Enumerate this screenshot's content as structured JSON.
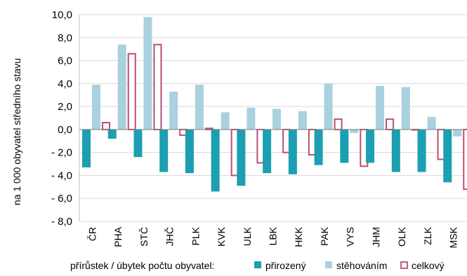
{
  "chart_data": {
    "type": "bar",
    "ylabel": "na 1 000 obyvatel středního stavu",
    "ylim": [
      -8,
      10
    ],
    "yticks": [
      10,
      8,
      6,
      4,
      2,
      0,
      -2,
      -4,
      -6,
      -8
    ],
    "ytick_labels": [
      "10,0",
      "8,0",
      "6,0",
      "4,0",
      "2,0",
      "0,0",
      "- 2,0",
      "- 4,0",
      "- 6,0",
      "- 8,0"
    ],
    "grid": true,
    "legend_position": "bottom",
    "legend_title": "přírůstek / úbytek  počtu  obyvatel:",
    "categories": [
      "ČR",
      "PHA",
      "STČ",
      "JHČ",
      "PLK",
      "KVK",
      "ULK",
      "LBK",
      "HKK",
      "PAK",
      "VYS",
      "JHM",
      "OLK",
      "ZLK",
      "MSK"
    ],
    "series": [
      {
        "name": "přirozený",
        "color": "#1b9fb1",
        "style": "solid",
        "values": [
          -3.3,
          -0.8,
          -2.4,
          -3.7,
          -3.8,
          -5.4,
          -4.9,
          -3.8,
          -3.9,
          -3.1,
          -2.9,
          -2.9,
          -3.7,
          -3.7,
          -4.6
        ]
      },
      {
        "name": "stěhováním",
        "color": "#a9d1df",
        "style": "solid",
        "values": [
          3.9,
          7.4,
          9.8,
          3.3,
          3.9,
          1.5,
          1.9,
          1.8,
          1.6,
          4.0,
          -0.3,
          3.8,
          3.7,
          1.1,
          -0.6
        ]
      },
      {
        "name": "celkový",
        "color": "#b94e77",
        "style": "outline",
        "values": [
          0.6,
          6.6,
          7.4,
          -0.5,
          0.1,
          -4.0,
          -2.9,
          -2.0,
          -2.2,
          0.9,
          -3.2,
          0.9,
          0.0,
          -2.6,
          -5.2
        ]
      }
    ]
  }
}
